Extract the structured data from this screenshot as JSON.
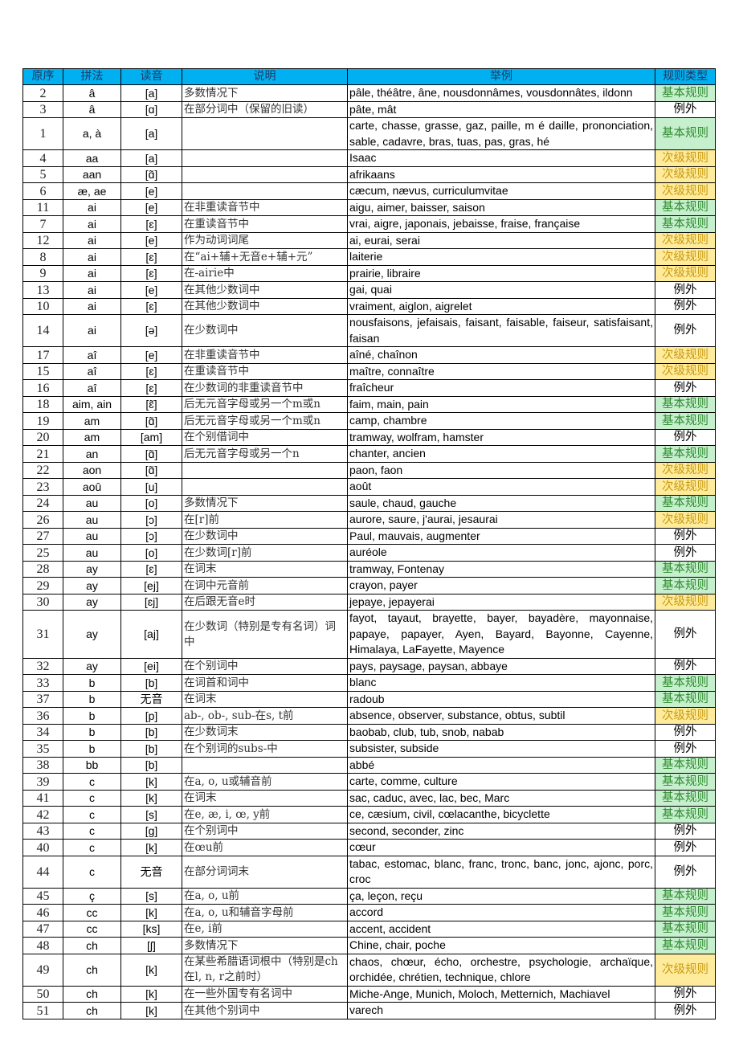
{
  "colors": {
    "header_bg": "#00B0F0",
    "basic_bg": "#C6EFCE",
    "basic_text": "#2E8B2E",
    "secondary_bg": "#FFEB9C",
    "secondary_text": "#C89A10"
  },
  "headers": [
    "原序",
    "拼法",
    "读音",
    "说明",
    "举例",
    "规则类型"
  ],
  "rows": [
    [
      "2",
      "â",
      "[a]",
      "多数情况下",
      "pâle, théâtre, âne, nousdonnâmes, vousdonnâtes, ildonn",
      "基本规则"
    ],
    [
      "3",
      "â",
      "[ɑ]",
      "在部分词中（保留的旧读）",
      "pâte, mât",
      "例外"
    ],
    [
      "1",
      "a, à",
      "[a]",
      "",
      "carte, chasse, grasse, gaz, paille, m é daille, prononciation, sable, cadavre, bras, tuas, pas, gras, hé",
      "基本规则"
    ],
    [
      "4",
      "aa",
      "[a]",
      "",
      "Isaac",
      "次级规则"
    ],
    [
      "5",
      "aan",
      "[ɑ̃]",
      "",
      "afrikaans",
      "次级规则"
    ],
    [
      "6",
      "æ, ae",
      "[e]",
      "",
      "cæcum, nævus, curriculumvitae",
      "次级规则"
    ],
    [
      "11",
      "ai",
      "[e]",
      "在非重读音节中",
      "aigu, aimer, baisser, saison",
      "基本规则"
    ],
    [
      "7",
      "ai",
      "[ɛ]",
      "在重读音节中",
      "vrai, aigre, japonais, jebaisse, fraise, française",
      "基本规则"
    ],
    [
      "12",
      "ai",
      "[e]",
      "作为动词词尾",
      "ai, eurai, serai",
      "次级规则"
    ],
    [
      "8",
      "ai",
      "[ɛ]",
      "在“ai+辅+无音e+辅+元”",
      "laiterie",
      "次级规则"
    ],
    [
      "9",
      "ai",
      "[ɛ]",
      "在-airie中",
      "prairie, libraire",
      "次级规则"
    ],
    [
      "13",
      "ai",
      "[e]",
      "在其他少数词中",
      "gai, quai",
      "例外"
    ],
    [
      "10",
      "ai",
      "[ɛ]",
      "在其他少数词中",
      "vraiment, aiglon, aigrelet",
      "例外"
    ],
    [
      "14",
      "ai",
      "[ə]",
      "在少数词中",
      "nousfaisons, jefaisais, faisant, faisable, faiseur, satisfaisant, faisan",
      "例外"
    ],
    [
      "17",
      "aî",
      "[e]",
      "在非重读音节中",
      "aîné, chaînon",
      "次级规则"
    ],
    [
      "15",
      "aî",
      "[ɛ]",
      "在重读音节中",
      "maître, connaître",
      "次级规则"
    ],
    [
      "16",
      "aî",
      "[ɛ]",
      "在少数词的非重读音节中",
      "fraîcheur",
      "例外"
    ],
    [
      "18",
      "aim, ain",
      "[ɛ̃]",
      "后无元音字母或另一个m或n",
      "faim, main, pain",
      "基本规则"
    ],
    [
      "19",
      "am",
      "[ɑ̃]",
      "后无元音字母或另一个m或n",
      "camp, chambre",
      "基本规则"
    ],
    [
      "20",
      "am",
      "[am]",
      "在个别借词中",
      "tramway, wolfram, hamster",
      "例外"
    ],
    [
      "21",
      "an",
      "[ɑ̃]",
      "后无元音字母或另一个n",
      "chanter, ancien",
      "基本规则"
    ],
    [
      "22",
      "aon",
      "[ɑ̃]",
      "",
      "paon, faon",
      "次级规则"
    ],
    [
      "23",
      "aoû",
      "[u]",
      "",
      "août",
      "次级规则"
    ],
    [
      "24",
      "au",
      "[o]",
      "多数情况下",
      "saule, chaud, gauche",
      "基本规则"
    ],
    [
      "26",
      "au",
      "[ɔ]",
      "在[r]前",
      "aurore, saure, j'aurai, jesaurai",
      "次级规则"
    ],
    [
      "27",
      "au",
      "[ɔ]",
      "在少数词中",
      "Paul, mauvais, augmenter",
      "例外"
    ],
    [
      "25",
      "au",
      "[o]",
      "在少数词[r]前",
      "auréole",
      "例外"
    ],
    [
      "28",
      "ay",
      "[ɛ]",
      "在词末",
      "tramway, Fontenay",
      "基本规则"
    ],
    [
      "29",
      "ay",
      "[ej]",
      "在词中元音前",
      "crayon, payer",
      "基本规则"
    ],
    [
      "30",
      "ay",
      "[ɛj]",
      "在后跟无音e时",
      "jepaye, jepayerai",
      "次级规则"
    ],
    [
      "31",
      "ay",
      "[aj]",
      "在少数词（特别是专有名词）词中",
      "fayot, tayaut, brayette, bayer, bayadère, mayonnaise, papaye, papayer, Ayen, Bayard, Bayonne, Cayenne, Himalaya, LaFayette, Mayence",
      "例外"
    ],
    [
      "32",
      "ay",
      "[ei]",
      "在个别词中",
      "pays, paysage, paysan, abbaye",
      "例外"
    ],
    [
      "33",
      "b",
      "[b]",
      "在词首和词中",
      "blanc",
      "基本规则"
    ],
    [
      "37",
      "b",
      "无音",
      "在词末",
      "radoub",
      "基本规则"
    ],
    [
      "36",
      "b",
      "[p]",
      "ab-, ob-, sub-在s, t前",
      "absence, observer, substance, obtus, subtil",
      "次级规则"
    ],
    [
      "34",
      "b",
      "[b]",
      "在少数词末",
      "baobab, club, tub, snob, nabab",
      "例外"
    ],
    [
      "35",
      "b",
      "[b]",
      "在个别词的subs-中",
      "subsister, subside",
      "例外"
    ],
    [
      "38",
      "bb",
      "[b]",
      "",
      "abbé",
      "基本规则"
    ],
    [
      "39",
      "c",
      "[k]",
      "在a, o, u或辅音前",
      "carte, comme, culture",
      "基本规则"
    ],
    [
      "41",
      "c",
      "[k]",
      "在词末",
      "sac, caduc, avec, lac, bec, Marc",
      "基本规则"
    ],
    [
      "42",
      "c",
      "[s]",
      "在e, æ, i, œ, y前",
      "ce, cæsium, civil, cœlacanthe, bicyclette",
      "基本规则"
    ],
    [
      "43",
      "c",
      "[g]",
      "在个别词中",
      "second, seconder, zinc",
      "例外"
    ],
    [
      "40",
      "c",
      "[k]",
      "在œu前",
      "cœur",
      "例外"
    ],
    [
      "44",
      "c",
      "无音",
      "在部分词词末",
      "tabac, estomac, blanc, franc, tronc, banc, jonc, ajonc, porc, croc",
      "例外"
    ],
    [
      "45",
      "ç",
      "[s]",
      "在a, o, u前",
      "ça, leçon, reçu",
      "基本规则"
    ],
    [
      "46",
      "cc",
      "[k]",
      "在a, o, u和辅音字母前",
      "accord",
      "基本规则"
    ],
    [
      "47",
      "cc",
      "[ks]",
      "在e, i前",
      "accent, accident",
      "基本规则"
    ],
    [
      "48",
      "ch",
      "[ʃ]",
      "多数情况下",
      "Chine, chair, poche",
      "基本规则"
    ],
    [
      "49",
      "ch",
      "[k]",
      "在某些希腊语词根中（特别是ch在l, n, r之前时）",
      "chaos, chœur, écho, orchestre, psychologie, archaïque, orchidée, chrétien, technique, chlore",
      "次级规则"
    ],
    [
      "50",
      "ch",
      "[k]",
      "在一些外国专有名词中",
      "Miche-Ange, Munich, Moloch, Metternich, Machiavel",
      "例外"
    ],
    [
      "51",
      "ch",
      "[k]",
      "在其他个别词中",
      "varech",
      "例外"
    ]
  ]
}
